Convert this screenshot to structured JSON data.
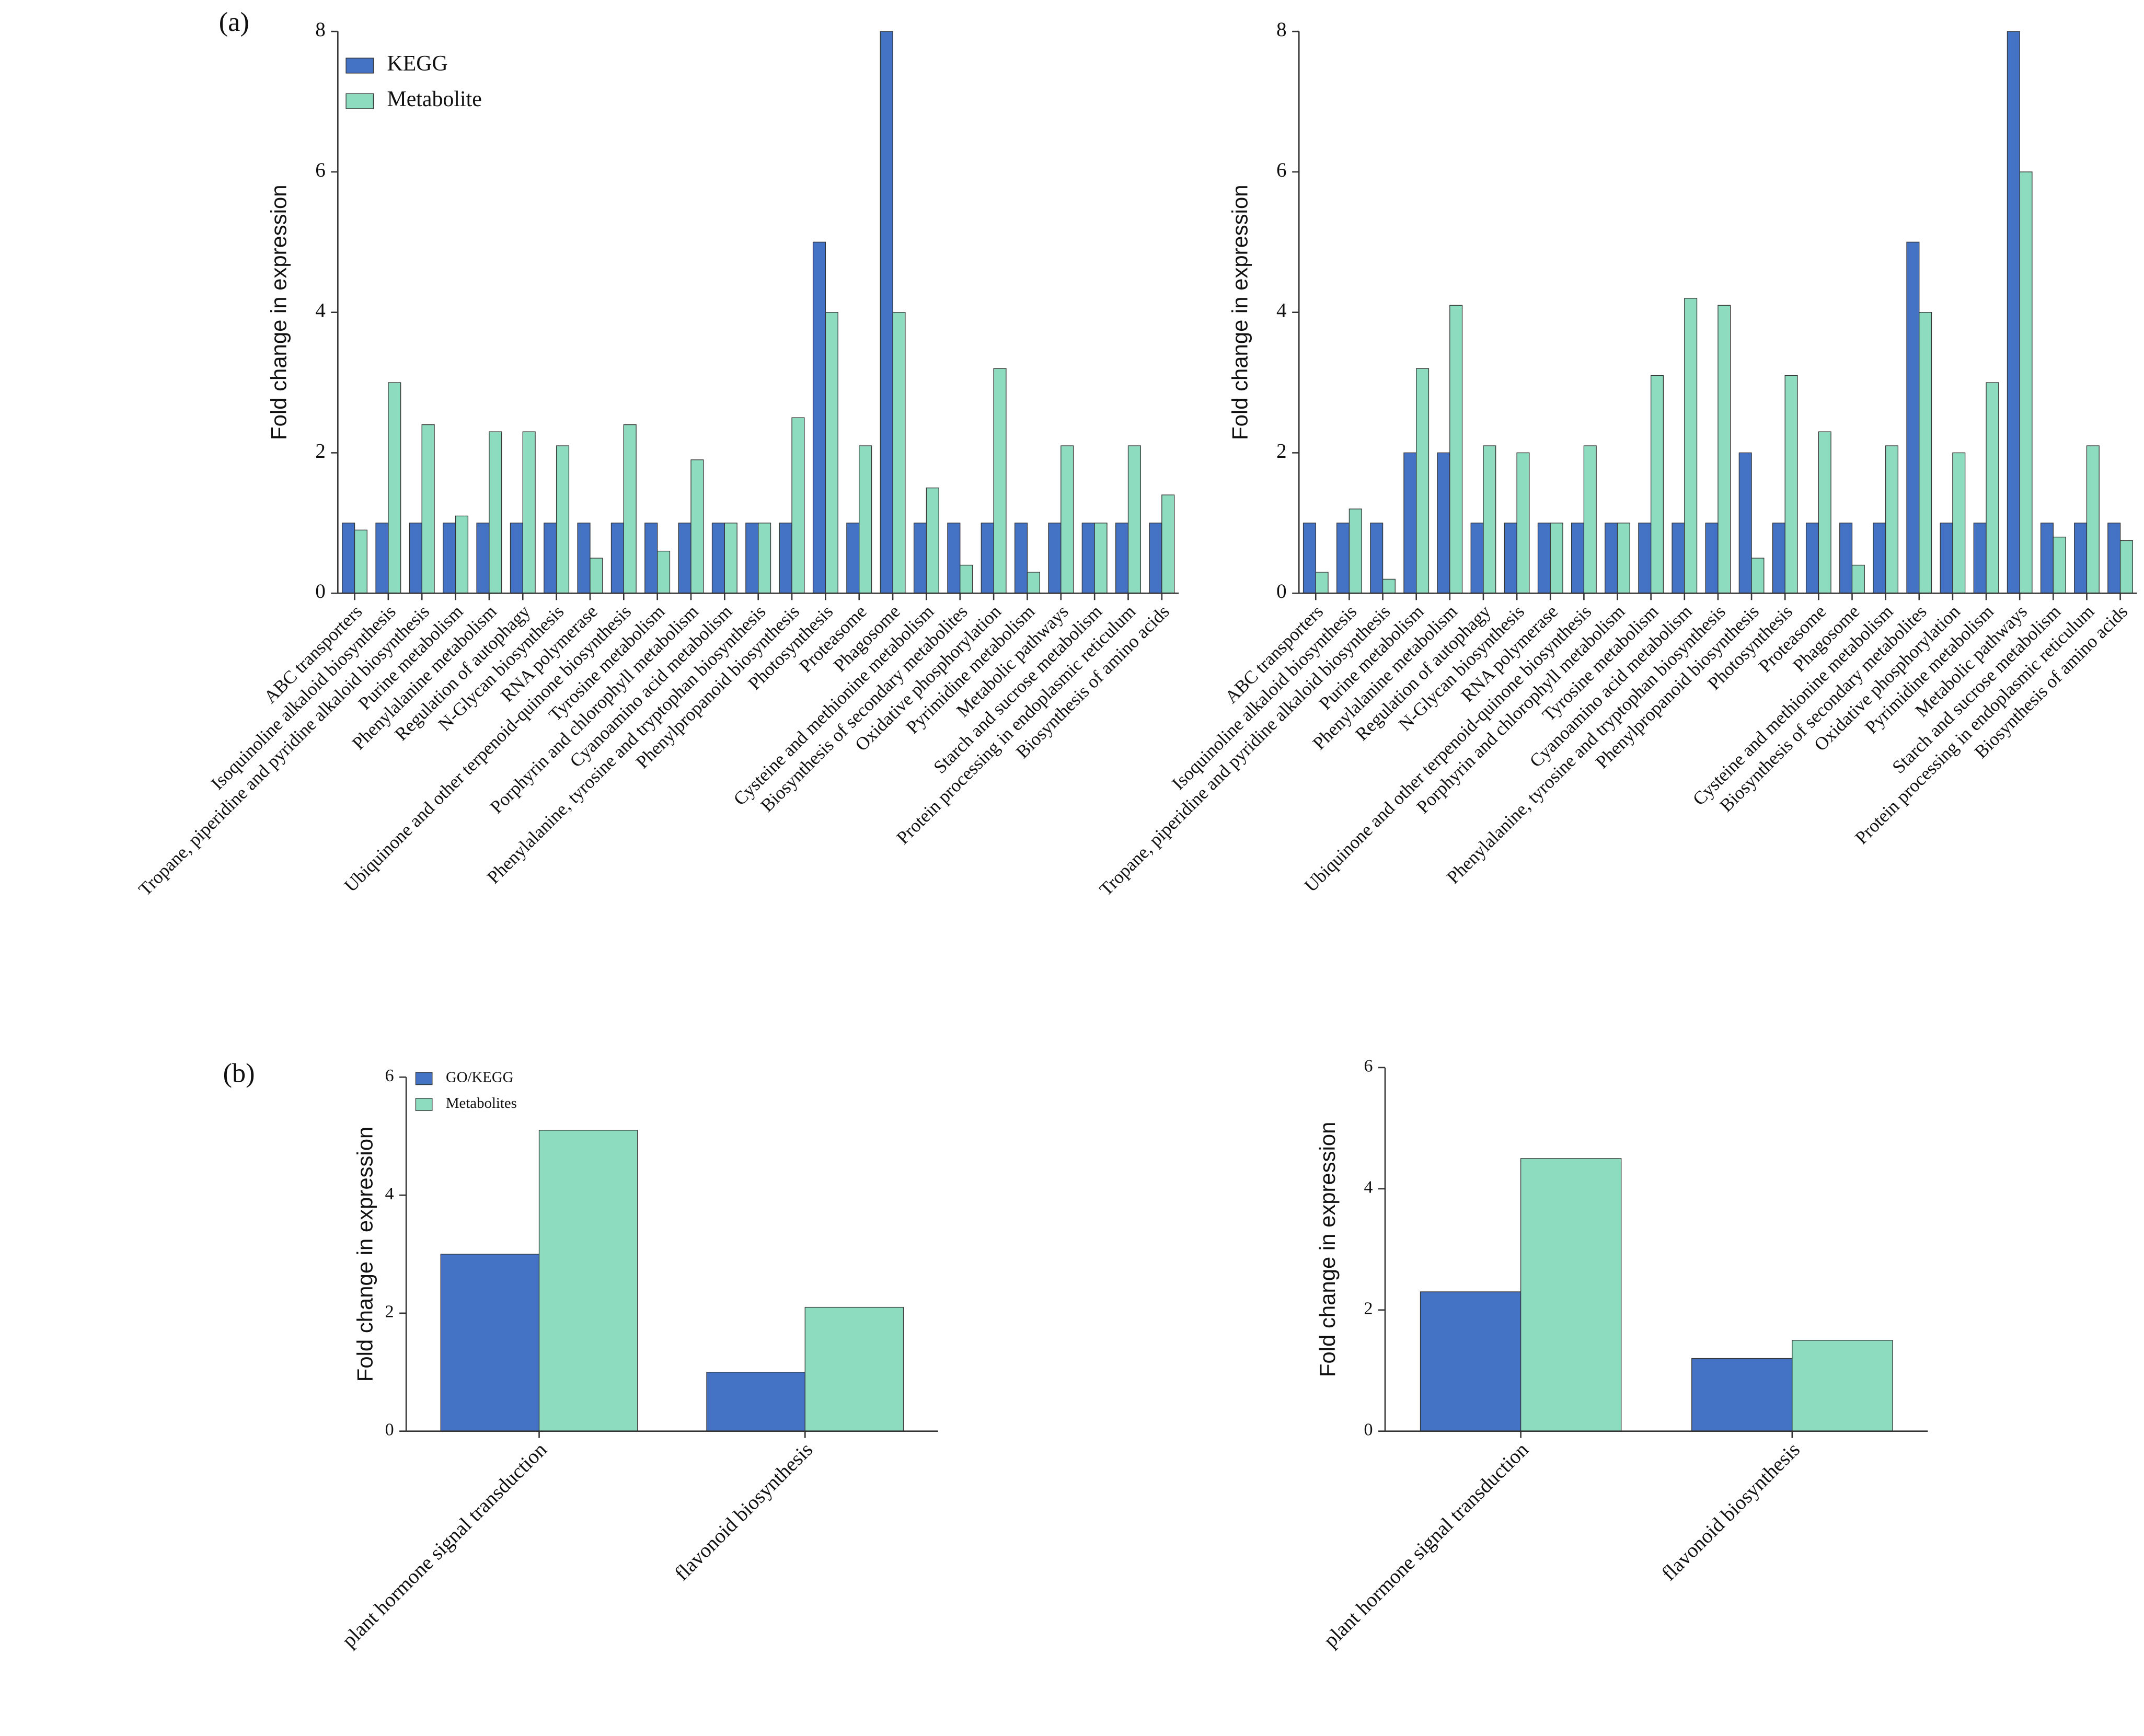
{
  "chart_data": [
    {
      "type": "bar",
      "panel_label": "(a)",
      "ylabel": "Fold change in expression",
      "categories": [
        "ABC transporters",
        "Isoquinoline alkaloid biosynthesis",
        "Tropane, piperidine and pyridine alkaloid biosynthesis",
        "Purine metabolism",
        "Phenylalanine metabolism",
        "Regulation of autophagy",
        "N-Glycan biosynthesis",
        "RNA polymerase",
        "Ubiquinone and other terpenoid-quinone biosynthesis",
        "Tyrosine metabolism",
        "Porphyrin and chlorophyll metabolism",
        "Cyanoamino acid metabolism",
        "Phenylalanine, tyrosine and tryptophan biosynthesis",
        "Phenylpropanoid biosynthesis",
        "Photosynthesis",
        "Proteasome",
        "Phagosome",
        "Cysteine and methionine metabolism",
        "Biosynthesis of secondary metabolites",
        "Oxidative phosphorylation",
        "Pyrimidine metabolism",
        "Metabolic pathways",
        "Starch and sucrose metabolism",
        "Protein processing in endoplasmic reticulum",
        "Biosynthesis of amino acids"
      ],
      "series": [
        {
          "name": "KEGG",
          "color": "#4472c4",
          "values": [
            1,
            1,
            1,
            1,
            1,
            1,
            1,
            1,
            1,
            1,
            1,
            1,
            1,
            1,
            5,
            1,
            8,
            1,
            1,
            1,
            1,
            1,
            1,
            1,
            1
          ]
        },
        {
          "name": "Metabolite",
          "color": "#8ddcbf",
          "values": [
            0.9,
            3,
            2.4,
            1.1,
            2.3,
            2.3,
            2.1,
            0.5,
            2.4,
            0.6,
            1.9,
            1,
            1,
            2.5,
            4,
            2.1,
            4,
            1.5,
            0.4,
            3.2,
            0.3,
            2.1,
            1,
            2.1,
            1.4
          ]
        }
      ],
      "ylim": [
        0,
        8
      ],
      "yticks": [
        0,
        2,
        4,
        6,
        8
      ],
      "legend": "upper left"
    },
    {
      "type": "bar",
      "ylabel": "Fold change in expression",
      "categories": [
        "ABC transporters",
        "Isoquinoline alkaloid biosynthesis",
        "Tropane, piperidine and pyridine alkaloid biosynthesis",
        "Purine metabolism",
        "Phenylalanine metabolism",
        "Regulation of autophagy",
        "N-Glycan biosynthesis",
        "RNA polymerase",
        "Ubiquinone and other terpenoid-quinone biosynthesis",
        "Porphyrin and chlorophyll metabolism",
        "Tyrosine metabolism",
        "Cyanoamino acid metabolism",
        "Phenylalanine, tyrosine and tryptophan biosynthesis",
        "Phenylpropanoid biosynthesis",
        "Photosynthesis",
        "Proteasome",
        "Phagosome",
        "Cysteine and methionine metabolism",
        "Biosynthesis of secondary metabolites",
        "Oxidative phosphorylation",
        "Pyrimidine metabolism",
        "Metabolic pathways",
        "Starch and sucrose metabolism",
        "Protein processing in endoplasmic reticulum",
        "Biosynthesis of amino acids"
      ],
      "series": [
        {
          "color": "#4472c4",
          "values": [
            1,
            1,
            1,
            2,
            2,
            1,
            1,
            1,
            1,
            1,
            1,
            1,
            1,
            2,
            1,
            1,
            1,
            1,
            5,
            1,
            1,
            8,
            1,
            1,
            1
          ]
        },
        {
          "color": "#8ddcbf",
          "values": [
            0.3,
            1.2,
            0.2,
            3.2,
            4.1,
            2.1,
            2,
            1,
            2.1,
            1,
            3.1,
            4.2,
            4.1,
            0.5,
            3.1,
            2.3,
            0.4,
            2.1,
            4,
            2,
            3,
            6,
            0.8,
            2.1,
            0.75
          ]
        }
      ],
      "ylim": [
        0,
        8
      ],
      "yticks": [
        0,
        2,
        4,
        6,
        8
      ]
    },
    {
      "type": "bar",
      "panel_label": "(b)",
      "ylabel": "Fold change in expression",
      "categories": [
        "plant hormone signal transduction",
        "flavonoid biosynthesis"
      ],
      "series": [
        {
          "name": "GO/KEGG",
          "color": "#4472c4",
          "values": [
            3,
            1
          ]
        },
        {
          "name": "Metabolites",
          "color": "#8ddcbf",
          "values": [
            5.1,
            2.1
          ]
        }
      ],
      "ylim": [
        0,
        6
      ],
      "yticks": [
        0,
        2,
        4,
        6
      ],
      "legend": "upper left"
    },
    {
      "type": "bar",
      "ylabel": "Fold change in expression",
      "categories": [
        "plant hormone signal transduction",
        "flavonoid biosynthesis"
      ],
      "series": [
        {
          "color": "#4472c4",
          "values": [
            2.3,
            1.2
          ]
        },
        {
          "color": "#8ddcbf",
          "values": [
            4.5,
            1.5
          ]
        }
      ],
      "ylim": [
        0,
        6
      ],
      "yticks": [
        0,
        2,
        4,
        6
      ]
    }
  ]
}
